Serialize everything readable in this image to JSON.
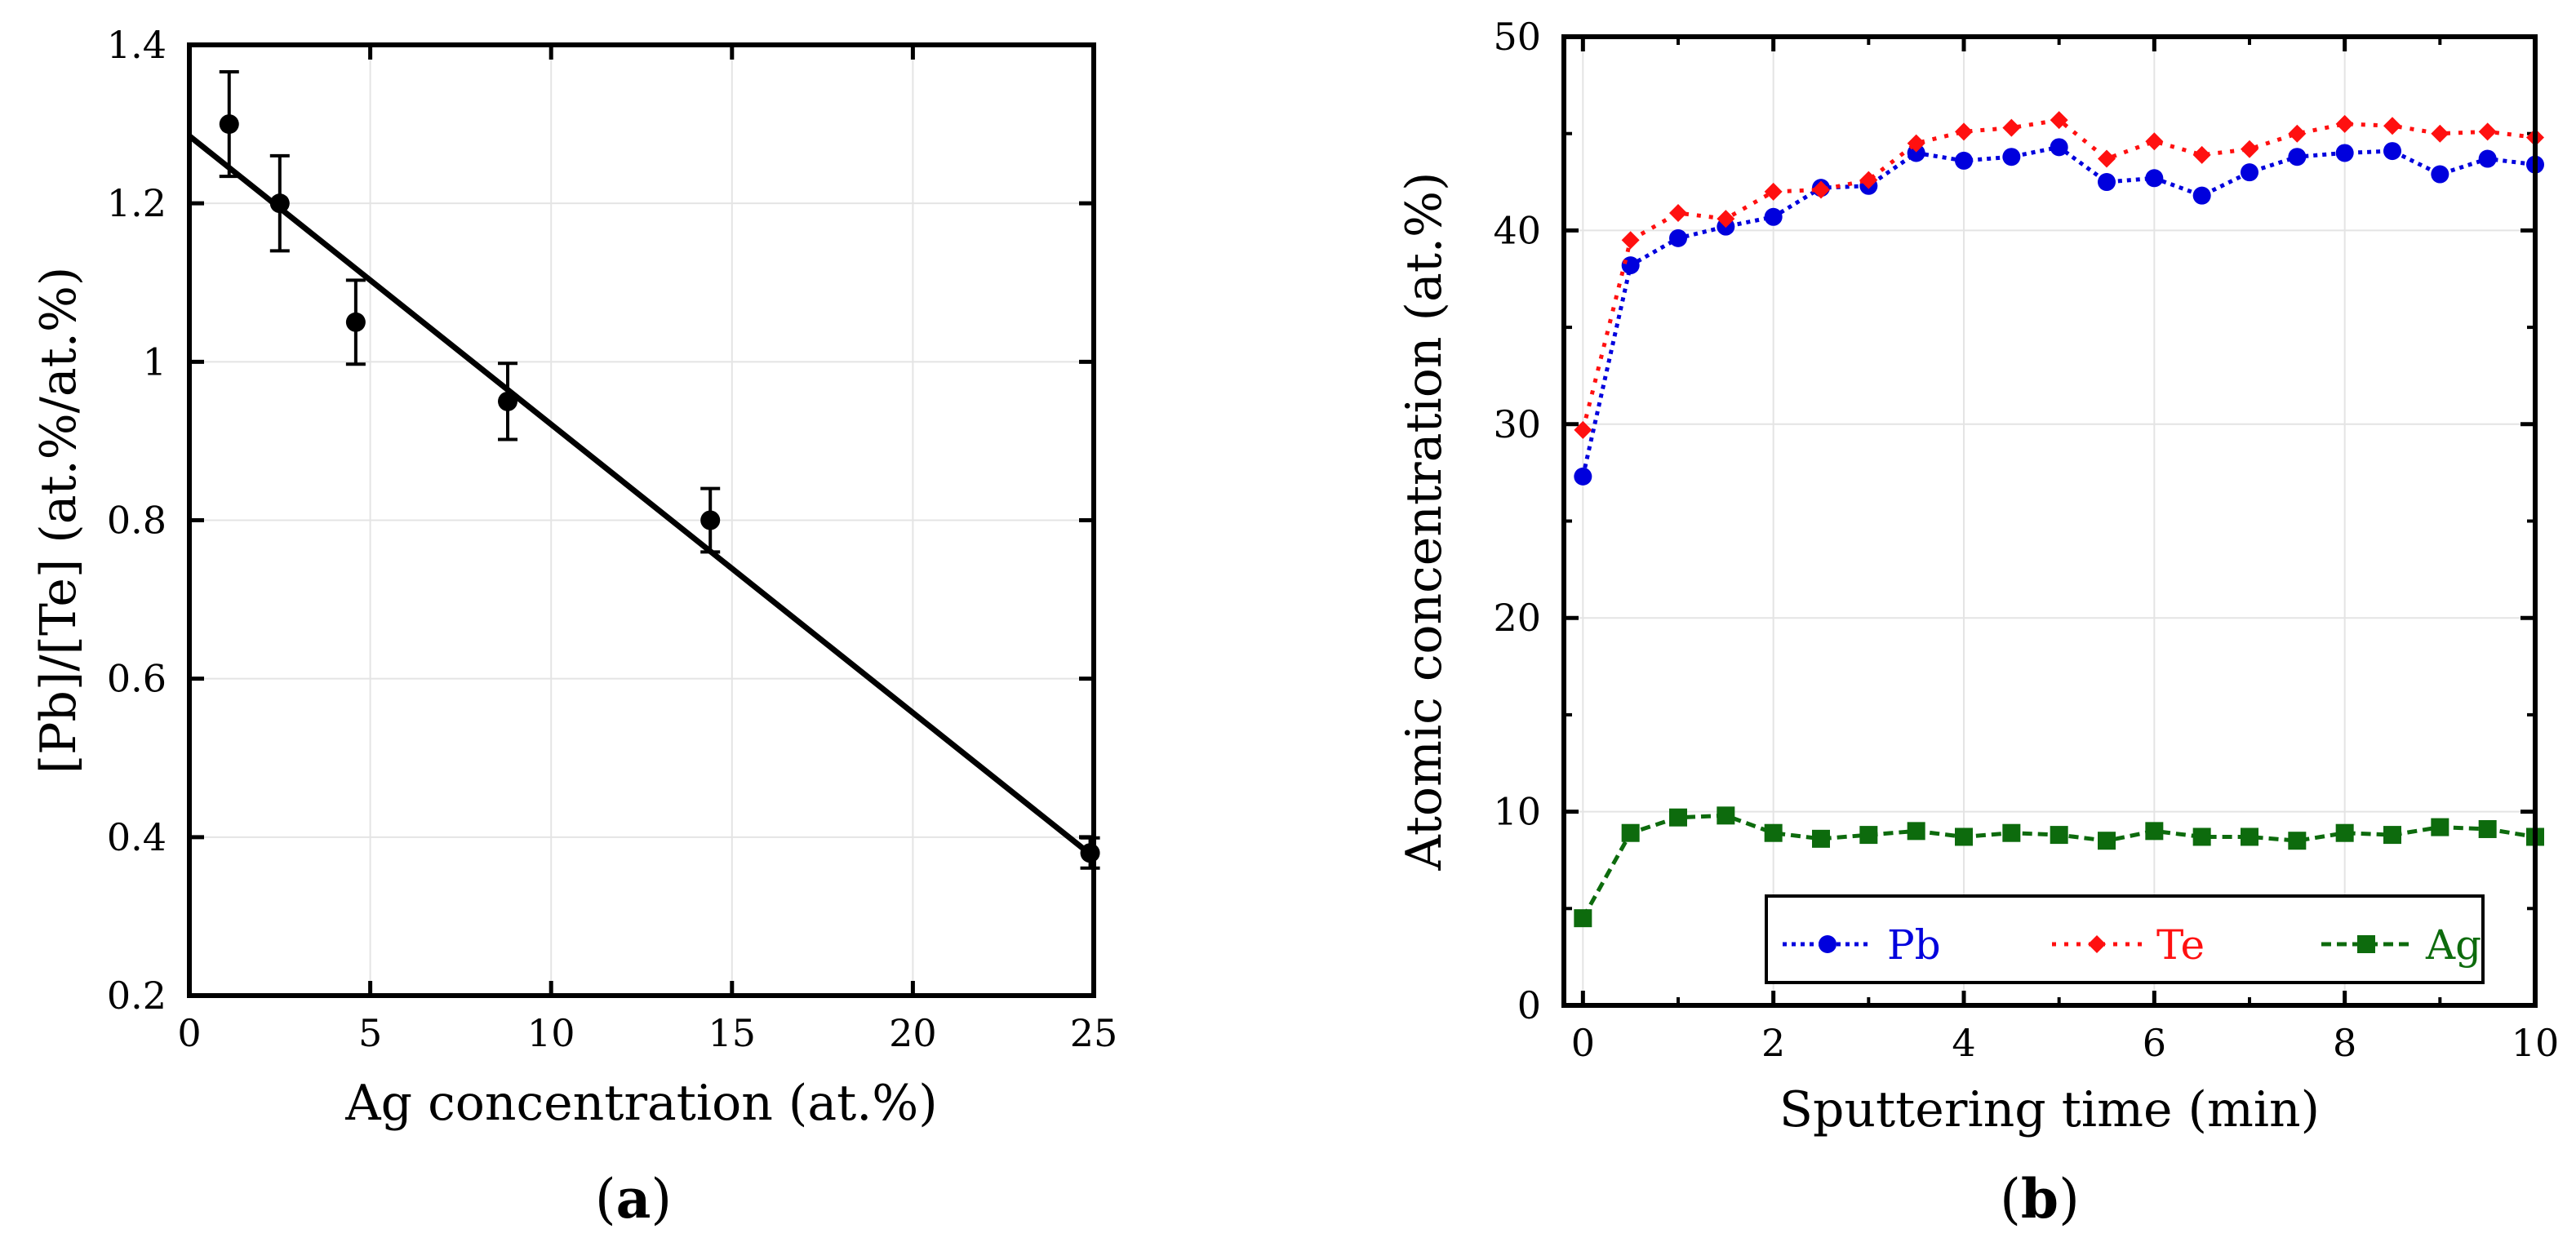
{
  "chart_data": [
    {
      "panel_label_open": "(",
      "panel_label_letter": "a",
      "panel_label_close": ")",
      "type": "scatter",
      "xlabel": "Ag concentration (at.%)",
      "ylabel": "[Pb]/[Te] (at.%/at.%)",
      "xlim": [
        0,
        25
      ],
      "ylim": [
        0.2,
        1.4
      ],
      "grid": true,
      "xticks": [
        "0",
        "5",
        "10",
        "15",
        "20",
        "25"
      ],
      "yticks": [
        "0.2",
        "0.4",
        "0.6",
        "0.8",
        "1",
        "1.2",
        "1.4"
      ],
      "series": [
        {
          "type": "scatter",
          "color": "#000000",
          "points": [
            {
              "x": 1.1,
              "y": 1.3,
              "err": 0.066
            },
            {
              "x": 2.5,
              "y": 1.2,
              "err": 0.06
            },
            {
              "x": 4.6,
              "y": 1.05,
              "err": 0.053
            },
            {
              "x": 8.8,
              "y": 0.95,
              "err": 0.048
            },
            {
              "x": 14.4,
              "y": 0.8,
              "err": 0.04
            },
            {
              "x": 24.9,
              "y": 0.38,
              "err": 0.019
            }
          ]
        },
        {
          "type": "line",
          "color": "#000000",
          "x": [
            0,
            25
          ],
          "y": [
            1.285,
            0.375
          ]
        }
      ]
    },
    {
      "panel_label_open": "(",
      "panel_label_letter": "b",
      "panel_label_close": ")",
      "type": "line",
      "xlabel": "Sputtering time (min)",
      "ylabel": "Atomic concentration (at.%)",
      "xlim": [
        -0.2,
        10
      ],
      "ylim": [
        0,
        50
      ],
      "grid": true,
      "legend_position": "bottom",
      "xticks": [
        "0",
        "2",
        "4",
        "6",
        "8",
        "10"
      ],
      "yticks": [
        "0",
        "10",
        "20",
        "30",
        "40",
        "50"
      ],
      "x": [
        0,
        0.5,
        1,
        1.5,
        2,
        2.5,
        3,
        3.5,
        4,
        4.5,
        5,
        5.5,
        6,
        6.5,
        7,
        7.5,
        8,
        8.5,
        9,
        9.5,
        10
      ],
      "series": [
        {
          "name": "Pb",
          "color": "#0000dd",
          "marker": "circle",
          "values": [
            27.3,
            38.2,
            39.6,
            40.2,
            40.7,
            42.2,
            42.3,
            44.0,
            43.6,
            43.8,
            44.3,
            42.5,
            42.7,
            41.8,
            43.0,
            43.8,
            44.0,
            44.1,
            42.9,
            43.7,
            43.4
          ]
        },
        {
          "name": "Te",
          "color": "#ff1010",
          "marker": "diamond",
          "values": [
            29.7,
            39.5,
            40.9,
            40.6,
            42.0,
            42.1,
            42.6,
            44.5,
            45.1,
            45.3,
            45.7,
            43.7,
            44.6,
            43.9,
            44.2,
            45.0,
            45.5,
            45.4,
            45.0,
            45.1,
            44.8
          ]
        },
        {
          "name": "Ag",
          "color": "#0d6b0d",
          "marker": "square",
          "values": [
            4.5,
            8.9,
            9.7,
            9.8,
            8.9,
            8.6,
            8.8,
            9.0,
            8.7,
            8.9,
            8.8,
            8.5,
            9.0,
            8.7,
            8.7,
            8.5,
            8.9,
            8.8,
            9.2,
            9.1,
            8.7
          ]
        }
      ]
    }
  ]
}
